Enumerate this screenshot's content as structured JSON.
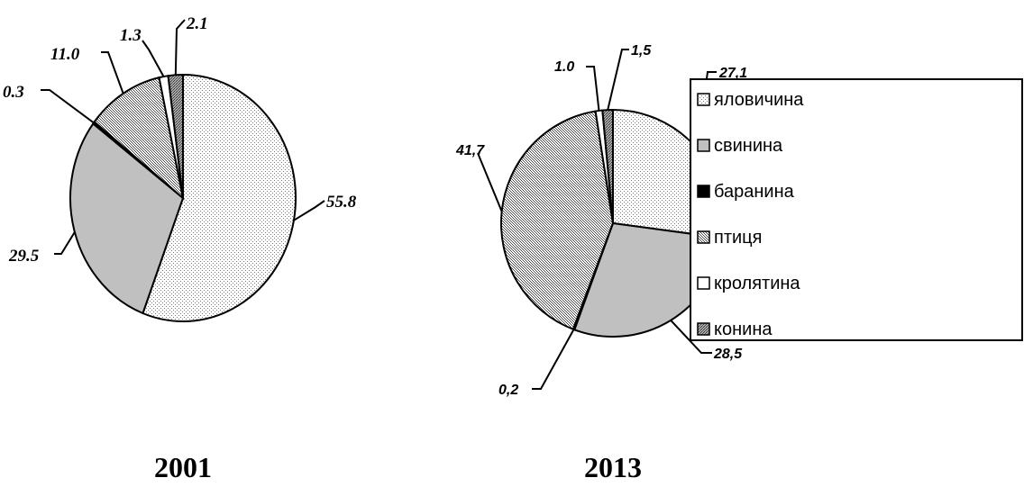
{
  "legend": [
    {
      "label": "яловичина",
      "pattern": "dots"
    },
    {
      "label": "свинина",
      "pattern": "gray"
    },
    {
      "label": "баранина",
      "pattern": "black"
    },
    {
      "label": "птиця",
      "pattern": "hatch"
    },
    {
      "label": "кролятина",
      "pattern": "white"
    },
    {
      "label": "конина",
      "pattern": "dark"
    }
  ],
  "colors": {
    "gray": "#c0c0c0",
    "black": "#000000",
    "white": "#ffffff",
    "dark": "#8c8c8c"
  },
  "chart_data": [
    {
      "type": "pie",
      "title": "2001",
      "categories": [
        "яловичина",
        "свинина",
        "баранина",
        "птиця",
        "кролятина",
        "конина"
      ],
      "values": [
        55.8,
        29.5,
        0.3,
        11.0,
        1.3,
        2.1
      ],
      "labels": [
        "55.8",
        "29.5",
        "0.3",
        "11.0",
        "1.3",
        "2.1"
      ]
    },
    {
      "type": "pie",
      "title": "2013",
      "categories": [
        "яловичина",
        "свинина",
        "баранина",
        "птиця",
        "кролятина",
        "конина"
      ],
      "values": [
        27.1,
        28.5,
        0.2,
        41.7,
        1.0,
        1.5
      ],
      "labels": [
        "27,1",
        "28,5",
        "0,2",
        "41,7",
        "1.0",
        "1,5"
      ]
    }
  ]
}
